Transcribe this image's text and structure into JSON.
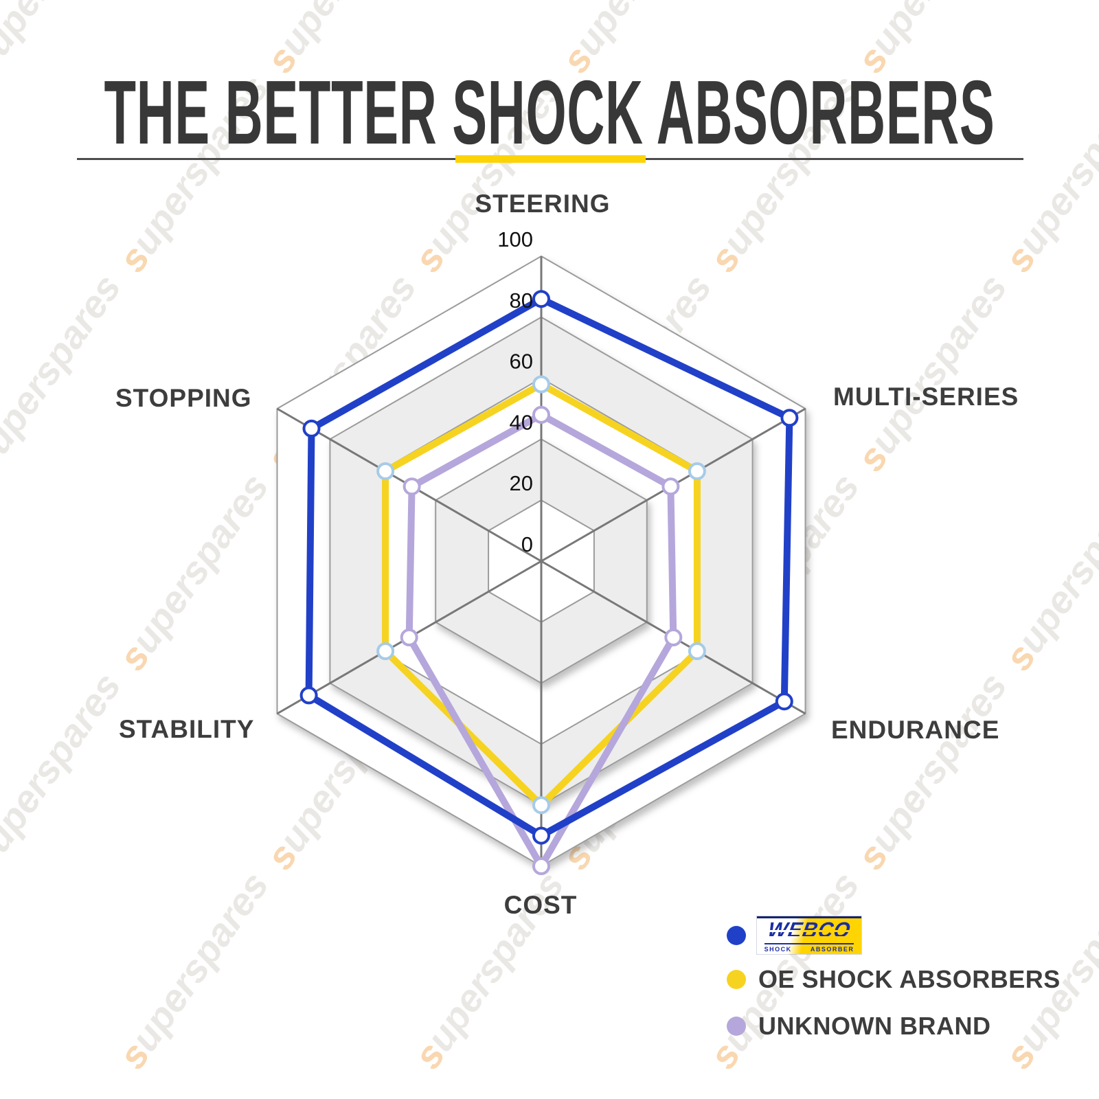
{
  "page": {
    "title": "THE BETTER SHOCK ABSORBERS"
  },
  "watermark": {
    "text": "superspares"
  },
  "chart_data": {
    "type": "radar",
    "title": "THE BETTER SHOCK ABSORBERS",
    "categories": [
      "STEERING",
      "MULTI-SERIES",
      "ENDURANCE",
      "COST",
      "STABILITY",
      "STOPPING"
    ],
    "ticks": [
      0,
      20,
      40,
      60,
      80,
      100
    ],
    "rmax": 100,
    "grid": {
      "ring_color": "#9b9b9b",
      "spoke_color": "#787878",
      "band_fill_gray": "#ededed",
      "band_fill_white": "#ffffff"
    },
    "series": [
      {
        "name": "WEBCO SHOCK ABSORBER",
        "color": "#2140c8",
        "marker_stroke": "#2140c8",
        "values": [
          86,
          94,
          92,
          90,
          88,
          87
        ]
      },
      {
        "name": "OE SHOCK ABSORBERS",
        "color": "#f6d320",
        "marker_stroke": "#a6cbe8",
        "values": [
          58,
          59,
          59,
          80,
          59,
          59
        ]
      },
      {
        "name": "UNKNOWN BRAND",
        "color": "#b5a7db",
        "marker_stroke": "#b5a7db",
        "values": [
          48,
          49,
          50,
          100,
          50,
          49
        ]
      }
    ],
    "legend_position": "bottom-right"
  },
  "legend": {
    "items": [
      {
        "label": "WEBCO",
        "sub_left": "SHOCK",
        "sub_right": "ABSORBER",
        "dot_color": "#2140c8",
        "style": "logo"
      },
      {
        "label": "OE SHOCK ABSORBERS",
        "dot_color": "#f6d320",
        "style": "text"
      },
      {
        "label": "UNKNOWN BRAND",
        "dot_color": "#b5a7db",
        "style": "text"
      }
    ]
  }
}
